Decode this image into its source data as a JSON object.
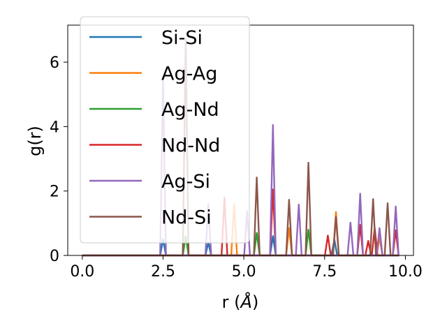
{
  "chart_data": {
    "type": "line",
    "xlabel": "r (",
    "xlabel_unit": "Å",
    "xlabel_close": ")",
    "ylabel": "g(r)",
    "xlim": [
      -0.45,
      10.25
    ],
    "ylim": [
      0,
      7.15
    ],
    "x_ticks": [
      0.0,
      2.5,
      5.0,
      7.5,
      10.0
    ],
    "x_tick_labels": [
      "0.0",
      "2.5",
      "5.0",
      "7.5",
      "10.0"
    ],
    "y_ticks": [
      0,
      2,
      4,
      6
    ],
    "y_tick_labels": [
      "0",
      "2",
      "4",
      "6"
    ],
    "grid": false,
    "legend_position": "top-left",
    "x_range": [
      0,
      9.8
    ],
    "series": [
      {
        "name": "Si-Si",
        "color": "#1f77b4",
        "peaks": [
          [
            2.5,
            0.5
          ],
          [
            3.9,
            0.4
          ],
          [
            5.9,
            0.6
          ],
          [
            7.8,
            0.5
          ]
        ]
      },
      {
        "name": "Ag-Ag",
        "color": "#ff7f0e",
        "peaks": [
          [
            4.7,
            1.6
          ],
          [
            6.4,
            0.85
          ],
          [
            7.85,
            1.35
          ],
          [
            9.2,
            0.55
          ]
        ]
      },
      {
        "name": "Ag-Nd",
        "color": "#2ca02c",
        "peaks": [
          [
            3.2,
            0.6
          ],
          [
            5.4,
            0.7
          ],
          [
            7.0,
            0.8
          ]
        ]
      },
      {
        "name": "Nd-Nd",
        "color": "#d62728",
        "peaks": [
          [
            4.4,
            1.8
          ],
          [
            5.9,
            2.05
          ],
          [
            7.6,
            0.62
          ],
          [
            8.6,
            0.95
          ],
          [
            8.85,
            0.45
          ],
          [
            9.05,
            0.85
          ],
          [
            9.7,
            0.78
          ]
        ]
      },
      {
        "name": "Ag-Si",
        "color": "#9467bd",
        "peaks": [
          [
            2.5,
            5.55
          ],
          [
            3.9,
            1.6
          ],
          [
            5.1,
            1.38
          ],
          [
            5.9,
            4.05
          ],
          [
            6.7,
            1.58
          ],
          [
            8.3,
            1.02
          ],
          [
            8.6,
            1.92
          ],
          [
            9.2,
            0.85
          ],
          [
            9.7,
            1.52
          ]
        ]
      },
      {
        "name": "Nd-Si",
        "color": "#8c564b",
        "peaks": [
          [
            3.2,
            6.7
          ],
          [
            5.4,
            2.42
          ],
          [
            6.4,
            1.73
          ],
          [
            7.0,
            2.88
          ],
          [
            7.85,
            1.2
          ],
          [
            9.0,
            1.75
          ],
          [
            9.45,
            1.62
          ]
        ]
      }
    ]
  }
}
